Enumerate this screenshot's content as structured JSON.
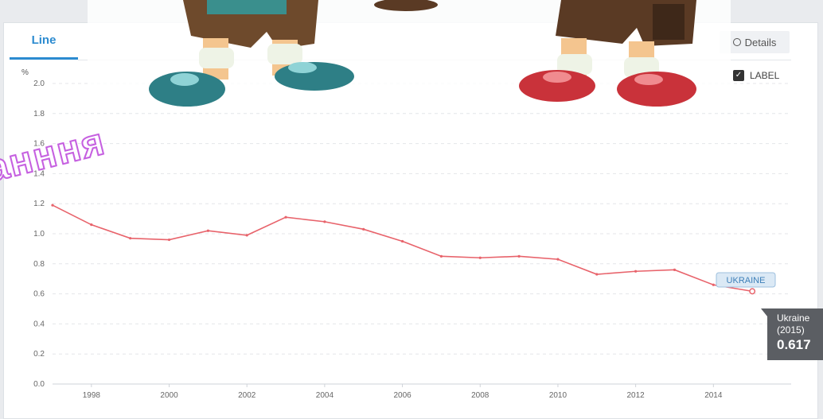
{
  "tabs": {
    "active_label": "Line"
  },
  "toolbar": {
    "details_label": "Details",
    "label_toggle_text": "LABEL",
    "label_checked": true
  },
  "watermark_text": "анння",
  "chart_data": {
    "type": "line",
    "title": "",
    "xlabel": "",
    "ylabel": "%",
    "ylim": [
      0,
      2.0
    ],
    "xlim": [
      1997,
      2016
    ],
    "grid": true,
    "y_ticks": [
      "0.0",
      "0.2",
      "0.4",
      "0.6",
      "0.8",
      "1.0",
      "1.2",
      "1.4",
      "1.6",
      "1.8",
      "2.0"
    ],
    "x_ticks": [
      "1998",
      "2000",
      "2002",
      "2004",
      "2006",
      "2008",
      "2010",
      "2012",
      "2014"
    ],
    "series": [
      {
        "name": "UKRAINE",
        "color": "#e8636b",
        "x": [
          1997,
          1998,
          1999,
          2000,
          2001,
          2002,
          2003,
          2004,
          2005,
          2006,
          2007,
          2008,
          2009,
          2010,
          2011,
          2012,
          2013,
          2014,
          2015
        ],
        "y": [
          1.19,
          1.06,
          0.97,
          0.96,
          1.02,
          0.99,
          1.11,
          1.08,
          1.03,
          0.95,
          0.85,
          0.84,
          0.85,
          0.83,
          0.73,
          0.75,
          0.76,
          0.66,
          0.617
        ]
      }
    ],
    "tooltip": {
      "line1": "Ukraine",
      "line2": "(2015)",
      "value": "0.617"
    }
  }
}
